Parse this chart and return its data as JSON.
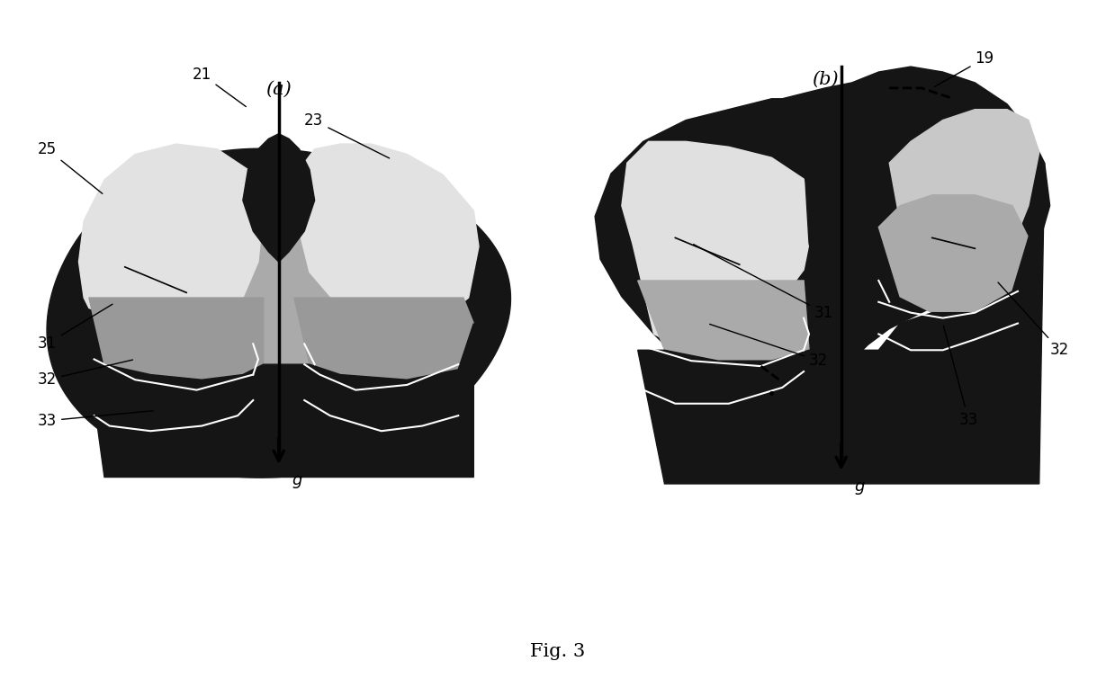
{
  "fig_title": "Fig. 3",
  "label_a": "(a)",
  "label_b": "(b)",
  "bg_color": "#ffffff",
  "dark": "#111111",
  "mid_gray": "#888888",
  "light_gray": "#cccccc",
  "white_ish": "#e8e8e8"
}
